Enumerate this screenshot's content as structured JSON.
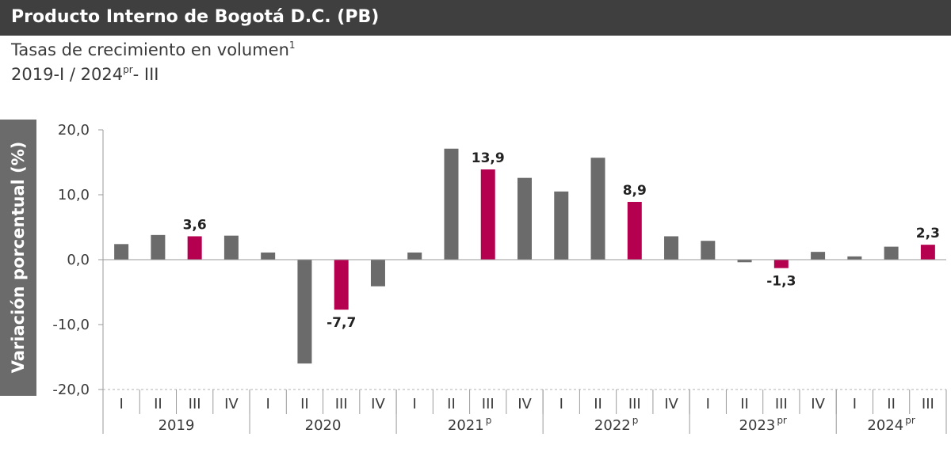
{
  "header": {
    "title": "Producto Interno de Bogotá D.C. (PB)",
    "subtitle_main": "Tasas de crecimiento en volumen",
    "subtitle_note": "1",
    "period_start": "2019-I  / 2024",
    "period_sup": "pr",
    "period_end": "- III"
  },
  "colors": {
    "bar": "#6b6b6b",
    "highlight": "#b5004f",
    "title_bg": "#3f3f3f"
  },
  "chart_data": {
    "type": "bar",
    "ylabel": "Variación porcentual (%)",
    "ylim": [
      -20,
      20
    ],
    "yticks": [
      20,
      10,
      0,
      -10,
      -20
    ],
    "ytick_labels": [
      "20,0",
      "10,0",
      "0,0",
      "-10,0",
      "-20,0"
    ],
    "quarters": [
      "I",
      "II",
      "III",
      "IV",
      "I",
      "II",
      "III",
      "IV",
      "I",
      "II",
      "III",
      "IV",
      "I",
      "II",
      "III",
      "IV",
      "I",
      "II",
      "III",
      "IV",
      "I",
      "II",
      "III"
    ],
    "values": [
      2.4,
      3.8,
      3.6,
      3.7,
      1.1,
      -16.0,
      -7.7,
      -4.1,
      1.1,
      17.1,
      13.9,
      12.6,
      10.5,
      15.7,
      8.9,
      3.6,
      2.9,
      -0.4,
      -1.3,
      1.2,
      0.5,
      2.0,
      2.3
    ],
    "highlighted": [
      2,
      6,
      10,
      14,
      18,
      22
    ],
    "data_labels": {
      "2": "3,6",
      "6": "-7,7",
      "10": "13,9",
      "14": "8,9",
      "18": "-1,3",
      "22": "2,3"
    },
    "years": [
      {
        "label": "2019",
        "sup": "",
        "quarters": 4
      },
      {
        "label": "2020",
        "sup": "",
        "quarters": 4
      },
      {
        "label": "2021",
        "sup": "p",
        "quarters": 4
      },
      {
        "label": "2022",
        "sup": "p",
        "quarters": 4
      },
      {
        "label": "2023",
        "sup": "pr",
        "quarters": 4
      },
      {
        "label": "2024",
        "sup": "pr",
        "quarters": 3
      }
    ]
  }
}
